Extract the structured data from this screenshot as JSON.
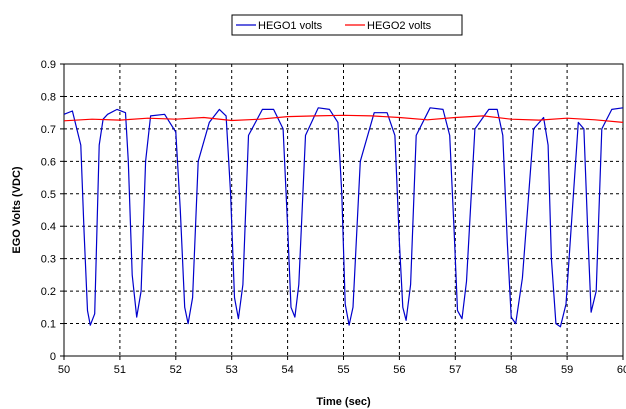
{
  "chart_data": {
    "type": "line",
    "title": "",
    "xlabel": "Time (sec)",
    "ylabel": "EGO Volts (VDC)",
    "xlim": [
      50,
      60
    ],
    "ylim": [
      0,
      0.9
    ],
    "x_ticks": [
      "50",
      "51",
      "52",
      "53",
      "54",
      "55",
      "56",
      "57",
      "58",
      "59",
      "60"
    ],
    "y_ticks": [
      "0",
      "0.1",
      "0.2",
      "0.3",
      "0.4",
      "0.5",
      "0.6",
      "0.7",
      "0.8",
      "0.9"
    ],
    "grid": true,
    "legend_position": "top",
    "series": [
      {
        "name": "HEGO1 volts",
        "color": "#0000cc",
        "x": [
          50.0,
          50.15,
          50.3,
          50.36,
          50.42,
          50.47,
          50.55,
          50.63,
          50.7,
          50.78,
          50.95,
          51.1,
          51.15,
          51.22,
          51.3,
          51.38,
          51.46,
          51.55,
          51.8,
          52.0,
          52.08,
          52.16,
          52.22,
          52.3,
          52.4,
          52.6,
          52.78,
          52.9,
          52.98,
          53.05,
          53.12,
          53.2,
          53.3,
          53.55,
          53.75,
          53.92,
          54.0,
          54.06,
          54.13,
          54.2,
          54.32,
          54.55,
          54.75,
          54.9,
          54.97,
          55.03,
          55.1,
          55.17,
          55.3,
          55.55,
          55.78,
          55.92,
          56.0,
          56.06,
          56.12,
          56.2,
          56.3,
          56.55,
          56.78,
          56.9,
          56.98,
          57.04,
          57.12,
          57.2,
          57.35,
          57.6,
          57.75,
          57.85,
          57.93,
          58.0,
          58.08,
          58.2,
          58.4,
          58.58,
          58.66,
          58.72,
          58.8,
          58.88,
          58.98,
          59.2,
          59.3,
          59.37,
          59.43,
          59.52,
          59.62,
          59.8,
          60.0
        ],
        "values": [
          0.745,
          0.755,
          0.65,
          0.38,
          0.14,
          0.095,
          0.13,
          0.65,
          0.73,
          0.745,
          0.76,
          0.75,
          0.6,
          0.25,
          0.12,
          0.2,
          0.6,
          0.74,
          0.745,
          0.69,
          0.45,
          0.15,
          0.1,
          0.18,
          0.6,
          0.72,
          0.76,
          0.74,
          0.5,
          0.18,
          0.115,
          0.22,
          0.68,
          0.76,
          0.76,
          0.7,
          0.4,
          0.15,
          0.12,
          0.22,
          0.68,
          0.765,
          0.76,
          0.72,
          0.5,
          0.16,
          0.095,
          0.15,
          0.6,
          0.75,
          0.75,
          0.68,
          0.35,
          0.15,
          0.11,
          0.22,
          0.68,
          0.765,
          0.76,
          0.68,
          0.38,
          0.14,
          0.115,
          0.23,
          0.7,
          0.76,
          0.76,
          0.68,
          0.35,
          0.12,
          0.1,
          0.24,
          0.7,
          0.735,
          0.65,
          0.3,
          0.1,
          0.09,
          0.16,
          0.72,
          0.7,
          0.38,
          0.135,
          0.2,
          0.7,
          0.76,
          0.765
        ]
      },
      {
        "name": "HEGO2 volts",
        "color": "#ff0000",
        "x": [
          50,
          50.5,
          51,
          51.5,
          52,
          52.5,
          53,
          53.5,
          54,
          54.5,
          55,
          55.5,
          56,
          56.5,
          57,
          57.5,
          58,
          58.5,
          59,
          59.5,
          60
        ],
        "values": [
          0.725,
          0.73,
          0.727,
          0.733,
          0.73,
          0.735,
          0.726,
          0.73,
          0.738,
          0.74,
          0.742,
          0.74,
          0.735,
          0.728,
          0.735,
          0.74,
          0.73,
          0.727,
          0.733,
          0.728,
          0.72
        ]
      }
    ]
  }
}
